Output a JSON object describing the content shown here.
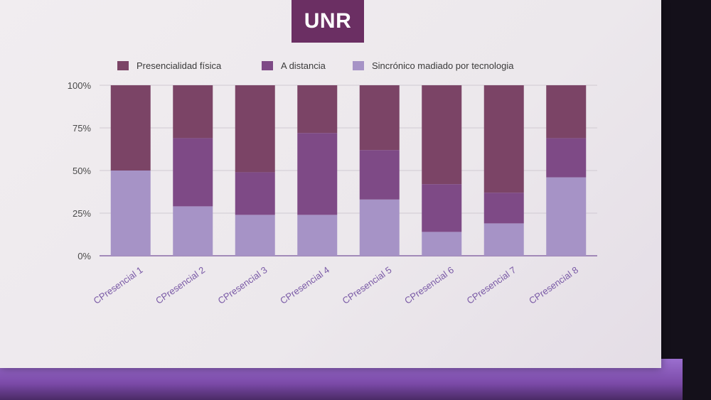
{
  "logo": {
    "text": "UNR"
  },
  "colors": {
    "presencialidad": "#7b4466",
    "distancia": "#7e4a86",
    "sincronico": "#a693c6",
    "tick_text": "#4a4a4a",
    "category_text": "#7a5aa6",
    "grid": "#d0cad2"
  },
  "chart_data": {
    "type": "bar",
    "stacked": true,
    "categories": [
      "CPresencial 1",
      "CPresencial 2",
      "CPresencial 3",
      "CPresencial 4",
      "CPresencial 5",
      "CPresencial 6",
      "CPresencial 7",
      "CPresencial 8"
    ],
    "series": [
      {
        "name": "Presencialidad física",
        "values": [
          50,
          31,
          51,
          28,
          38,
          58,
          63,
          31
        ]
      },
      {
        "name": "A distancia",
        "values": [
          0,
          40,
          25,
          48,
          29,
          28,
          18,
          23
        ]
      },
      {
        "name": "Sincrónico madiado por tecnologia",
        "values": [
          50,
          29,
          24,
          24,
          33,
          14,
          19,
          46
        ]
      }
    ],
    "y_ticks": [
      "0%",
      "25%",
      "50%",
      "75%",
      "100%"
    ],
    "ylim": [
      0,
      100
    ],
    "legend_position": "top",
    "grid": true
  }
}
